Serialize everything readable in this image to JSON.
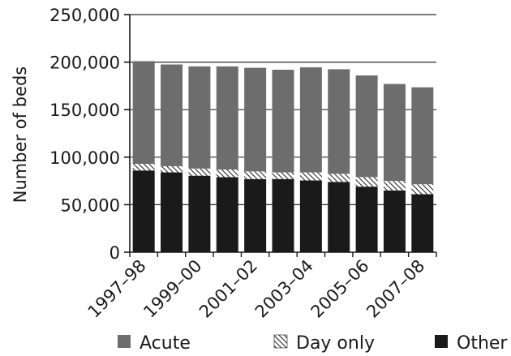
{
  "chart_data": {
    "type": "bar",
    "stacked": true,
    "title": "",
    "xlabel": "",
    "ylabel": "Number of beds",
    "ylim": [
      0,
      250000
    ],
    "yticks": [
      0,
      50000,
      100000,
      150000,
      200000,
      250000
    ],
    "ytick_labels": [
      "0",
      "50,000",
      "100,000",
      "150,000",
      "200,000",
      "250,000"
    ],
    "grid": "horizontal",
    "legend_position": "bottom",
    "categories": [
      "1997–98",
      "1998–99",
      "1999–00",
      "2000–01",
      "2001–02",
      "2002–03",
      "2003–04",
      "2004–05",
      "2005–06",
      "2006–07",
      "2007–08"
    ],
    "xtick_labels": [
      "1997–98",
      "",
      "1999–00",
      "",
      "2001–02",
      "",
      "2003–04",
      "",
      "2005–06",
      "",
      "2007–08"
    ],
    "series": [
      {
        "name": "Other",
        "color": "#1a1a1a",
        "pattern": "solid",
        "values": [
          86000,
          84000,
          80500,
          79000,
          77000,
          77000,
          75500,
          74000,
          69000,
          65000,
          61000
        ]
      },
      {
        "name": "Day only",
        "color": "#ffffff",
        "pattern": "hatch",
        "values": [
          7000,
          6500,
          7500,
          8000,
          8000,
          7000,
          8500,
          8500,
          10000,
          10000,
          10500
        ]
      },
      {
        "name": "Acute",
        "color": "#6d6d6d",
        "pattern": "solid",
        "values": [
          108000,
          107000,
          107500,
          108500,
          109000,
          108000,
          110500,
          110000,
          107000,
          102000,
          102000
        ]
      }
    ],
    "legend": [
      "Acute",
      "Day only",
      "Other"
    ]
  }
}
